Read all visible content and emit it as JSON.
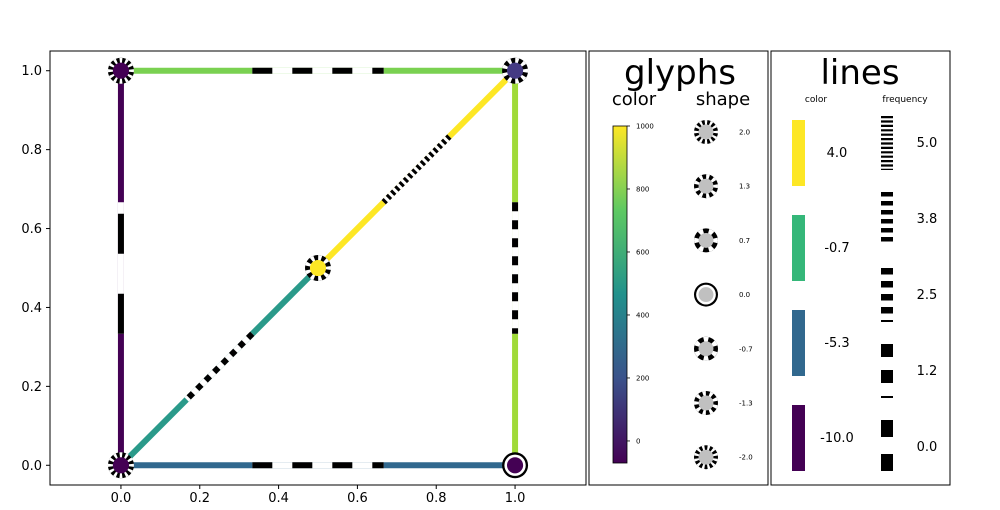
{
  "chart_data": {
    "type": "network",
    "xlim": [
      -0.18,
      1.18
    ],
    "ylim": [
      -0.05,
      1.05
    ],
    "x_ticks": [
      "0.0",
      "0.2",
      "0.4",
      "0.6",
      "0.8",
      "1.0"
    ],
    "y_ticks": [
      "0.0",
      "0.2",
      "0.4",
      "0.6",
      "0.8",
      "1.0"
    ],
    "grid": false,
    "nodes": [
      {
        "x": 0.0,
        "y": 1.0,
        "color": "#440154",
        "shape": 2.0
      },
      {
        "x": 1.0,
        "y": 1.0,
        "color": "#443a83",
        "shape": 1.3
      },
      {
        "x": 0.5,
        "y": 0.5,
        "color": "#fde725",
        "shape": 1.3
      },
      {
        "x": 0.0,
        "y": 0.0,
        "color": "#440154",
        "shape": 2.0
      },
      {
        "x": 1.0,
        "y": 0.0,
        "color": "#440154",
        "shape": 0.0
      }
    ],
    "edges": [
      {
        "from": [
          0.0,
          1.0
        ],
        "to": [
          1.0,
          1.0
        ],
        "color": "#7ad151",
        "frequency": 1.2
      },
      {
        "from": [
          1.0,
          1.0
        ],
        "to": [
          1.0,
          0.0
        ],
        "color": "#a0da39",
        "frequency": 2.5
      },
      {
        "from": [
          1.0,
          1.0
        ],
        "to": [
          0.5,
          0.5
        ],
        "color": "#fde725",
        "frequency": 5.0
      },
      {
        "from": [
          0.5,
          0.5
        ],
        "to": [
          0.0,
          0.0
        ],
        "color": "#2a9a8a",
        "frequency": 3.8
      },
      {
        "from": [
          0.0,
          0.0
        ],
        "to": [
          1.0,
          0.0
        ],
        "color": "#31688e",
        "frequency": 1.2
      },
      {
        "from": [
          0.0,
          0.0
        ],
        "to": [
          0.0,
          1.0
        ],
        "color": "#440154",
        "frequency": 0.0
      }
    ],
    "legends": {
      "glyphs": {
        "title": "glyphs",
        "color_title": "color",
        "color_ticks": [
          "1000",
          "800",
          "600",
          "400",
          "200",
          "0"
        ],
        "colormap": [
          "#440154",
          "#3b528b",
          "#21918c",
          "#5ec962",
          "#fde725"
        ],
        "shape_title": "shape",
        "shape_values": [
          "2.0",
          "1.3",
          "0.7",
          "0.0",
          "-0.7",
          "-1.3",
          "-2.0"
        ]
      },
      "lines": {
        "title": "lines",
        "color_title": "color",
        "color_items": [
          {
            "label": "4.0",
            "color": "#fde725"
          },
          {
            "label": "-0.7",
            "color": "#35b779"
          },
          {
            "label": "-5.3",
            "color": "#31688e"
          },
          {
            "label": "-10.0",
            "color": "#440154"
          }
        ],
        "frequency_title": "frequency",
        "frequency_items": [
          "5.0",
          "3.8",
          "2.5",
          "1.2",
          "0.0"
        ]
      }
    }
  }
}
